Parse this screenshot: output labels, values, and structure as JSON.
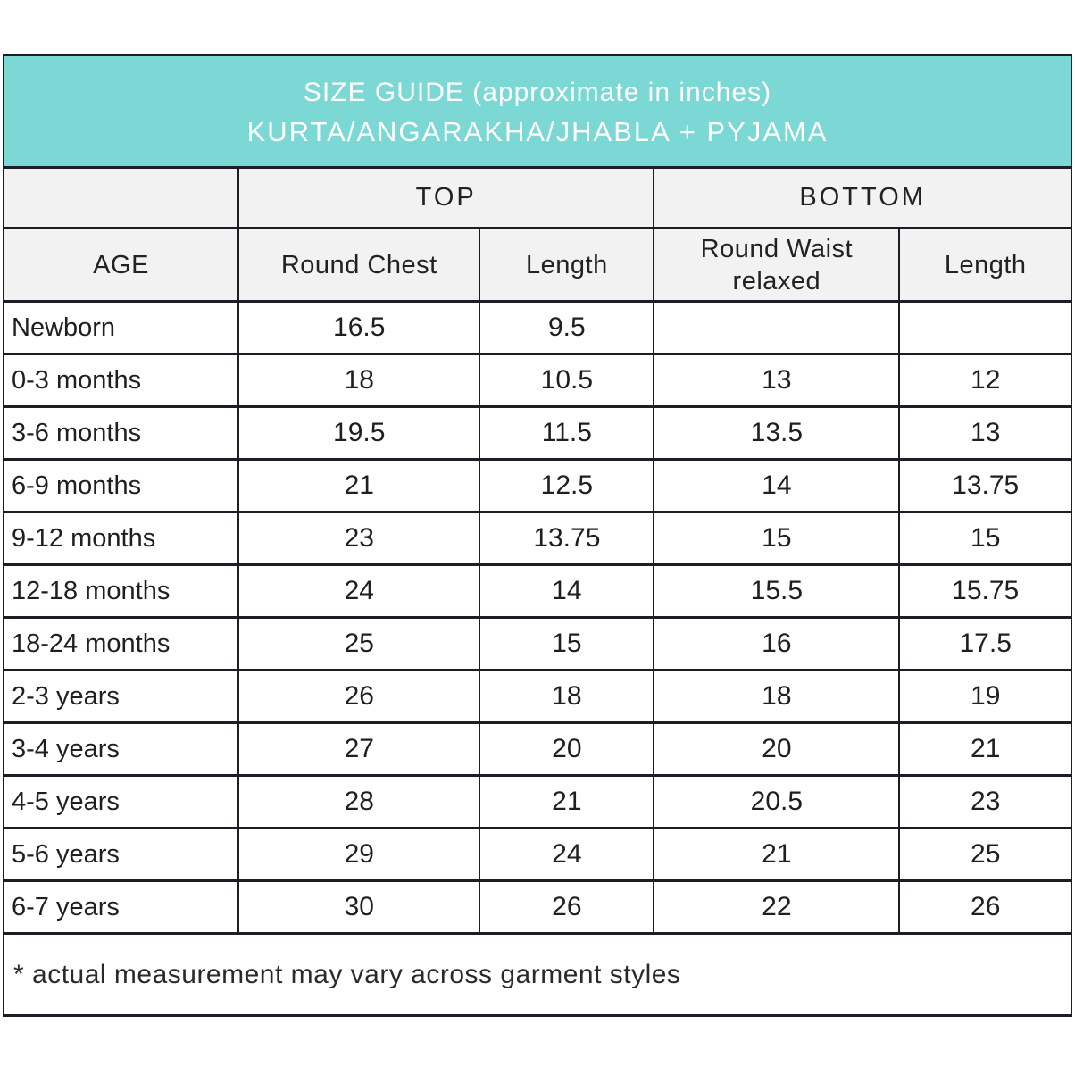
{
  "title": {
    "line1": "SIZE GUIDE (approximate in inches)",
    "line2": "KURTA/ANGARAKHA/JHABLA + PYJAMA"
  },
  "colors": {
    "header_bg": "#7bd8d5",
    "subheader_bg": "#f2f2f2",
    "border": "#1d1d26",
    "text": "#1f1f1f",
    "title_text": "#ffffff",
    "row_bg": "#ffffff"
  },
  "table": {
    "group_headers": {
      "top": "TOP",
      "bottom": "BOTTOM"
    },
    "columns": [
      "AGE",
      "Round Chest",
      "Length",
      "Round Waist relaxed",
      "Length"
    ],
    "rows": [
      {
        "age": "Newborn",
        "round_chest": "16.5",
        "top_length": "9.5",
        "round_waist": "",
        "bottom_length": ""
      },
      {
        "age": "0-3 months",
        "round_chest": "18",
        "top_length": "10.5",
        "round_waist": "13",
        "bottom_length": "12"
      },
      {
        "age": "3-6 months",
        "round_chest": "19.5",
        "top_length": "11.5",
        "round_waist": "13.5",
        "bottom_length": "13"
      },
      {
        "age": "6-9 months",
        "round_chest": "21",
        "top_length": "12.5",
        "round_waist": "14",
        "bottom_length": "13.75"
      },
      {
        "age": "9-12 months",
        "round_chest": "23",
        "top_length": "13.75",
        "round_waist": "15",
        "bottom_length": "15"
      },
      {
        "age": "12-18 months",
        "round_chest": "24",
        "top_length": "14",
        "round_waist": "15.5",
        "bottom_length": "15.75"
      },
      {
        "age": "18-24 months",
        "round_chest": "25",
        "top_length": "15",
        "round_waist": "16",
        "bottom_length": "17.5"
      },
      {
        "age": "2-3 years",
        "round_chest": "26",
        "top_length": "18",
        "round_waist": "18",
        "bottom_length": "19"
      },
      {
        "age": "3-4 years",
        "round_chest": "27",
        "top_length": "20",
        "round_waist": "20",
        "bottom_length": "21"
      },
      {
        "age": "4-5 years",
        "round_chest": "28",
        "top_length": "21",
        "round_waist": "20.5",
        "bottom_length": "23"
      },
      {
        "age": "5-6 years",
        "round_chest": "29",
        "top_length": "24",
        "round_waist": "21",
        "bottom_length": "25"
      },
      {
        "age": "6-7 years",
        "round_chest": "30",
        "top_length": "26",
        "round_waist": "22",
        "bottom_length": "26"
      }
    ],
    "footnote": "* actual measurement may vary across garment styles"
  }
}
